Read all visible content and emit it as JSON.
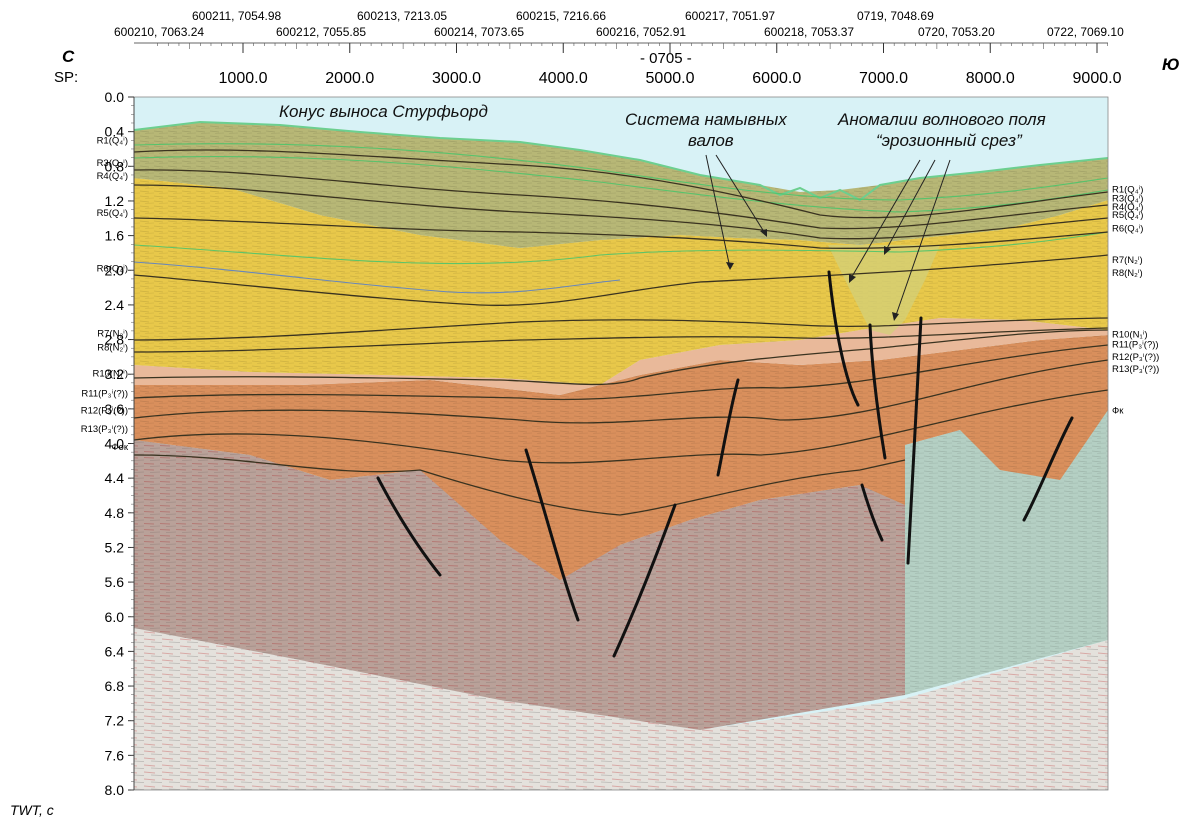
{
  "header": {
    "line_name": "- 0705 -",
    "north_label": "С",
    "south_label": "Ю",
    "sp_label": "SP:",
    "shotpoints": [
      "1000.0",
      "2000.0",
      "3000.0",
      "4000.0",
      "5000.0",
      "6000.0",
      "7000.0",
      "8000.0",
      "9000.0"
    ],
    "crossings_top": [
      "600211, 7054.98",
      "600213, 7213.05",
      "600215, 7216.66",
      "600217, 7051.97",
      "0719, 7048.69"
    ],
    "crossings_bottom": [
      "600210, 7063.24",
      "600212, 7055.85",
      "600214, 7073.65",
      "600216, 7052.91",
      "600218, 7053.37",
      "0720, 7053.20",
      "0722, 7069.10"
    ]
  },
  "y_axis": {
    "unit_label": "TWT, с",
    "ticks": [
      "0.0",
      "0.4",
      "0.8",
      "1.2",
      "1.6",
      "2.0",
      "2.4",
      "2.8",
      "3.2",
      "3.6",
      "4.0",
      "4.4",
      "4.8",
      "5.2",
      "5.6",
      "6.0",
      "6.4",
      "6.8",
      "7.2",
      "7.6",
      "8.0"
    ]
  },
  "annotations": {
    "fan": "Конус выноса Стурфьорд",
    "levee_line1": "Система намывных",
    "levee_line2": "валов",
    "anomaly_line1": "Аномалии волнового поля",
    "anomaly_line2": "“эрозионный срез”"
  },
  "horizons_left": [
    "R1(Q₄ⁱ)",
    "R3(Q₄ⁱ)",
    "R4(Q₄ⁱ)",
    "R5(Q₄ⁱ)",
    "R6(Q₄ⁱ)",
    "R7(N₂ⁱ)",
    "R8(N₂ⁱ)",
    "R10(N₁ⁱ)",
    "R11(P₃ⁱ(?))",
    "R12(P₃ⁱ(?))",
    "R13(P₃ⁱ(?))",
    "Фок"
  ],
  "horizons_right": [
    "R1(Q₄ⁱ)",
    "R3(Q₄ⁱ)",
    "R4(Q₄ⁱ)",
    "R5(Q₄ⁱ)",
    "R6(Q₄ⁱ)",
    "R7(N₂ⁱ)",
    "R8(N₂ⁱ)",
    "R10(N₁ⁱ)",
    "R11(P₃ⁱ(?))",
    "R12(P₃ⁱ(?))",
    "R13(P₃ⁱ(?))",
    "Фк"
  ],
  "colors": {
    "water": "#d8f2f6",
    "quaternary": "#b7b776",
    "neogene_yellow": "#e8c84a",
    "paleogene_peach": "#e9b99a",
    "orange_unit": "#d98f5c",
    "basement_brown": "#b9a199",
    "basement_green": "#b4cfc3",
    "deep_noise": "#e4e1dc",
    "fault": "#111111",
    "seafloor": "#6ccf8f"
  }
}
